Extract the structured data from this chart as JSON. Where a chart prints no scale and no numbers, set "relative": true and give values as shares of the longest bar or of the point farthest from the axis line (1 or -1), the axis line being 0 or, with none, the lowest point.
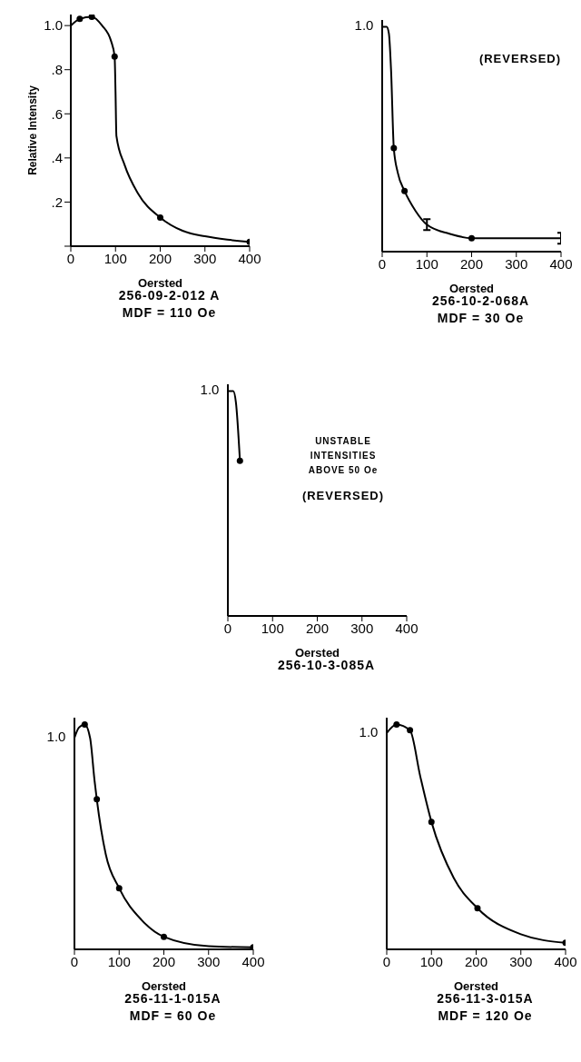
{
  "chart_data": [
    {
      "type": "line",
      "title": "256-09-2-012 A",
      "subtitle": "MDF = 110 Oe",
      "xlabel": "Oersted",
      "ylabel": "Relative Intensity",
      "xlim": [
        0,
        400
      ],
      "ylim": [
        0,
        1.05
      ],
      "xticks": [
        0,
        100,
        200,
        300,
        400
      ],
      "yticks": [
        {
          "value": 0,
          "label": null
        },
        {
          "value": 0.2,
          "label": ".2"
        },
        {
          "value": 0.4,
          "label": ".4"
        },
        {
          "value": 0.6,
          "label": ".6"
        },
        {
          "value": 0.8,
          "label": ".8"
        },
        {
          "value": 1.0,
          "label": "1.0"
        }
      ],
      "series": [
        {
          "marker": "none",
          "color": "#000000",
          "x": [
            0,
            20,
            47,
            70,
            90,
            98,
            100,
            102,
            120,
            150,
            200,
            250,
            300,
            350,
            400
          ],
          "values": [
            1.0,
            1.03,
            1.04,
            1.0,
            0.93,
            0.86,
            0.7,
            0.5,
            0.37,
            0.24,
            0.13,
            0.07,
            0.045,
            0.03,
            0.02
          ]
        },
        {
          "type": "scatter",
          "marker": "circle",
          "color": "#000000",
          "x": [
            20,
            47,
            98,
            200,
            400
          ],
          "values": [
            1.03,
            1.04,
            0.86,
            0.13,
            0.02
          ]
        }
      ]
    },
    {
      "type": "line",
      "relative": true,
      "title": "256-10-2-068A",
      "subtitle": "MDF = 30 Oe",
      "xlabel": "Oersted",
      "annotations": [
        "1.0",
        "(REVERSED)"
      ],
      "xlim": [
        0,
        400
      ],
      "xticks": [
        0,
        100,
        200,
        300,
        400
      ],
      "series": [
        {
          "marker": "none",
          "color": "#000000",
          "x": [
            0,
            10,
            15,
            20,
            26,
            35,
            50,
            75,
            100,
            150,
            200,
            250,
            300,
            400
          ],
          "values": [
            1.0,
            1.0,
            0.97,
            0.8,
            0.46,
            0.35,
            0.27,
            0.18,
            0.12,
            0.08,
            0.06,
            0.06,
            0.06,
            0.06
          ]
        },
        {
          "type": "scatter",
          "marker": "circle",
          "color": "#000000",
          "x": [
            26,
            50,
            200
          ],
          "values": [
            0.46,
            0.27,
            0.06
          ]
        },
        {
          "type": "scatter",
          "color": "#000000",
          "x": [
            100,
            400
          ],
          "values": [
            0.12,
            0.06
          ]
        }
      ]
    },
    {
      "type": "line",
      "relative": true,
      "title": "256-10-3-085A",
      "xlabel": "Oersted",
      "annotations": [
        "1.0",
        "UNSTABLE INTENSITIES ABOVE 50 Oe",
        "(REVERSED)"
      ],
      "xlim": [
        0,
        400
      ],
      "xticks": [
        0,
        100,
        200,
        300,
        400
      ],
      "series": [
        {
          "marker": "none",
          "color": "#000000",
          "x": [
            0,
            12,
            18,
            27
          ],
          "values": [
            1.0,
            1.0,
            0.95,
            0.69
          ]
        },
        {
          "type": "scatter",
          "marker": "circle",
          "color": "#000000",
          "x": [
            27
          ],
          "values": [
            0.69
          ]
        }
      ]
    },
    {
      "type": "line",
      "relative": true,
      "title": "256-11-1-015A",
      "subtitle": "MDF = 60 Oe",
      "xlabel": "Oersted",
      "annotations": [
        "1.0"
      ],
      "xlim": [
        0,
        400
      ],
      "xticks": [
        0,
        100,
        200,
        300,
        400
      ],
      "series": [
        {
          "marker": "none",
          "color": "#000000",
          "x": [
            0,
            10,
            23,
            35,
            45,
            50,
            70,
            100,
            150,
            200,
            300,
            400
          ],
          "values": [
            0.94,
            0.986,
            1.0,
            0.94,
            0.75,
            0.667,
            0.423,
            0.272,
            0.131,
            0.056,
            0.014,
            0.009
          ]
        },
        {
          "type": "scatter",
          "marker": "circle",
          "color": "#000000",
          "x": [
            23,
            50,
            100,
            200,
            400
          ],
          "values": [
            1.0,
            0.667,
            0.272,
            0.056,
            0.009
          ]
        }
      ]
    },
    {
      "type": "line",
      "relative": true,
      "title": "256-11-3-015A",
      "subtitle": "MDF = 120 Oe",
      "xlabel": "Oersted",
      "annotations": [
        "1.0"
      ],
      "xlim": [
        0,
        400
      ],
      "xticks": [
        0,
        100,
        200,
        300,
        400
      ],
      "series": [
        {
          "marker": "none",
          "color": "#000000",
          "x": [
            0,
            22,
            52,
            75,
            100,
            150,
            203,
            300,
            400
          ],
          "values": [
            0.962,
            1.0,
            0.974,
            0.769,
            0.567,
            0.317,
            0.183,
            0.067,
            0.029
          ]
        },
        {
          "type": "scatter",
          "marker": "circle",
          "color": "#000000",
          "x": [
            22,
            52,
            100,
            203,
            400
          ],
          "values": [
            1.0,
            0.974,
            0.567,
            0.183,
            0.029
          ]
        }
      ]
    }
  ]
}
